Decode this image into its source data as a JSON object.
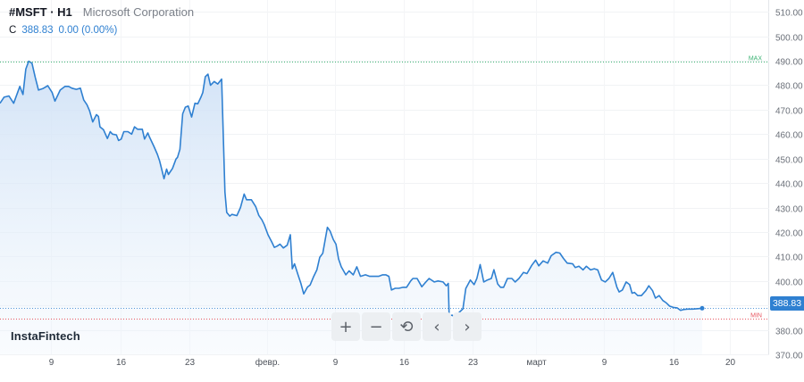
{
  "header": {
    "symbol": "#MSFT · H1",
    "company": "Microsoft Corporation",
    "close_label": "C",
    "close_value": "388.83",
    "change": "0.00 (0.00%)"
  },
  "watermark": "InstaFintech",
  "toolbar": {
    "zoom_in": "+",
    "zoom_out": "−",
    "reset": "⟲",
    "prev": "‹",
    "next": "›"
  },
  "colors": {
    "line": "#2f80d1",
    "max_line": "#3bb273",
    "min_line": "#e8555f"
  },
  "chart_data": {
    "type": "area",
    "ylim": [
      370,
      513
    ],
    "yticks": [
      "510.00",
      "500.00",
      "490.00",
      "480.00",
      "470.00",
      "460.00",
      "450.00",
      "440.00",
      "430.00",
      "420.00",
      "410.00",
      "400.00",
      "390.00",
      "380.00",
      "370.00"
    ],
    "xticks": [
      {
        "label": "9",
        "x": 0.0665
      },
      {
        "label": "16",
        "x": 0.1572
      },
      {
        "label": "23",
        "x": 0.2479
      },
      {
        "label": "февр.",
        "x": 0.3489
      },
      {
        "label": "9",
        "x": 0.4373
      },
      {
        "label": "16",
        "x": 0.528
      },
      {
        "label": "23",
        "x": 0.6176
      },
      {
        "label": "март",
        "x": 0.7004
      },
      {
        "label": "9",
        "x": 0.7888
      },
      {
        "label": "16",
        "x": 0.8795
      },
      {
        "label": "20",
        "x": 0.9535
      }
    ],
    "max": {
      "label": "MAX",
      "value": 489.8
    },
    "min": {
      "label": "MIN",
      "value": 384.7
    },
    "last": {
      "label": "388.83",
      "value": 388.83
    },
    "series": [
      {
        "values": [
          [
            0.0,
            472.6
          ],
          [
            0.0052,
            475.1
          ],
          [
            0.0117,
            475.6
          ],
          [
            0.0179,
            472.6
          ],
          [
            0.0259,
            479.5
          ],
          [
            0.03,
            476.2
          ],
          [
            0.0337,
            486.6
          ],
          [
            0.0375,
            489.8
          ],
          [
            0.0418,
            489.0
          ],
          [
            0.046,
            483.3
          ],
          [
            0.0503,
            478.0
          ],
          [
            0.0559,
            478.6
          ],
          [
            0.0624,
            479.8
          ],
          [
            0.0681,
            477.0
          ],
          [
            0.0718,
            473.5
          ],
          [
            0.0786,
            478.0
          ],
          [
            0.085,
            479.5
          ],
          [
            0.0896,
            479.5
          ],
          [
            0.0939,
            478.8
          ],
          [
            0.0996,
            478.3
          ],
          [
            0.105,
            478.8
          ],
          [
            0.1093,
            474.0
          ],
          [
            0.1136,
            472.0
          ],
          [
            0.117,
            469.5
          ],
          [
            0.1211,
            465.0
          ],
          [
            0.126,
            468.0
          ],
          [
            0.1286,
            467.2
          ],
          [
            0.1306,
            463.0
          ],
          [
            0.1352,
            461.8
          ],
          [
            0.1403,
            458.2
          ],
          [
            0.144,
            461.0
          ],
          [
            0.1469,
            460.0
          ],
          [
            0.152,
            459.7
          ],
          [
            0.1548,
            457.4
          ],
          [
            0.1583,
            458.0
          ],
          [
            0.1617,
            461.0
          ],
          [
            0.1671,
            461.0
          ],
          [
            0.172,
            460.0
          ],
          [
            0.1757,
            463.0
          ],
          [
            0.1796,
            462.0
          ],
          [
            0.1859,
            462.0
          ],
          [
            0.1888,
            458.0
          ],
          [
            0.1931,
            460.5
          ],
          [
            0.195,
            459.0
          ],
          [
            0.201,
            455.0
          ],
          [
            0.2056,
            451.7
          ],
          [
            0.2085,
            449.0
          ],
          [
            0.2102,
            447.0
          ],
          [
            0.2142,
            441.8
          ],
          [
            0.2176,
            445.7
          ],
          [
            0.2199,
            443.5
          ],
          [
            0.2253,
            446.0
          ],
          [
            0.2299,
            449.8
          ],
          [
            0.2318,
            450.5
          ],
          [
            0.235,
            453.8
          ],
          [
            0.2386,
            468.3
          ],
          [
            0.2421,
            471.0
          ],
          [
            0.2458,
            471.5
          ],
          [
            0.2503,
            467.0
          ],
          [
            0.2546,
            472.6
          ],
          [
            0.2583,
            472.4
          ],
          [
            0.2624,
            475.1
          ],
          [
            0.2649,
            477.0
          ],
          [
            0.2681,
            483.5
          ],
          [
            0.2717,
            484.5
          ],
          [
            0.2749,
            480.0
          ],
          [
            0.2798,
            481.5
          ],
          [
            0.2844,
            480.5
          ],
          [
            0.2895,
            482.5
          ],
          [
            0.2938,
            436.3
          ],
          [
            0.2961,
            428.0
          ],
          [
            0.3001,
            426.5
          ],
          [
            0.3029,
            427.2
          ],
          [
            0.3095,
            426.7
          ],
          [
            0.3141,
            430.0
          ],
          [
            0.3189,
            435.5
          ],
          [
            0.3221,
            433.2
          ],
          [
            0.3283,
            433.2
          ],
          [
            0.334,
            430.4
          ],
          [
            0.338,
            426.8
          ],
          [
            0.342,
            425.0
          ],
          [
            0.3452,
            423.0
          ],
          [
            0.3501,
            418.9
          ],
          [
            0.3549,
            416.0
          ],
          [
            0.3584,
            413.7
          ],
          [
            0.3618,
            414.2
          ],
          [
            0.3658,
            415.0
          ],
          [
            0.3701,
            413.5
          ],
          [
            0.3752,
            414.6
          ],
          [
            0.3792,
            418.9
          ],
          [
            0.3818,
            405.0
          ],
          [
            0.3847,
            407.0
          ],
          [
            0.3893,
            402.5
          ],
          [
            0.393,
            399.0
          ],
          [
            0.3967,
            394.7
          ],
          [
            0.4016,
            397.5
          ],
          [
            0.405,
            398.3
          ],
          [
            0.4098,
            401.9
          ],
          [
            0.4139,
            404.5
          ],
          [
            0.4176,
            409.6
          ],
          [
            0.4216,
            411.3
          ],
          [
            0.4276,
            421.9
          ],
          [
            0.4313,
            420.3
          ],
          [
            0.4354,
            416.9
          ],
          [
            0.4388,
            415.0
          ],
          [
            0.4422,
            409.0
          ],
          [
            0.4457,
            405.8
          ],
          [
            0.4517,
            402.5
          ],
          [
            0.456,
            404.1
          ],
          [
            0.4614,
            402.5
          ],
          [
            0.466,
            405.8
          ],
          [
            0.4708,
            401.9
          ],
          [
            0.4774,
            402.5
          ],
          [
            0.4828,
            401.9
          ],
          [
            0.4885,
            401.9
          ],
          [
            0.4945,
            401.9
          ],
          [
            0.4999,
            402.5
          ],
          [
            0.5039,
            402.5
          ],
          [
            0.5079,
            401.9
          ],
          [
            0.5113,
            396.3
          ],
          [
            0.5162,
            397.0
          ],
          [
            0.521,
            397.0
          ],
          [
            0.5265,
            397.4
          ],
          [
            0.531,
            397.4
          ],
          [
            0.5364,
            400.0
          ],
          [
            0.5393,
            401.0
          ],
          [
            0.5448,
            401.0
          ],
          [
            0.551,
            397.6
          ],
          [
            0.555,
            399.1
          ],
          [
            0.5604,
            401.0
          ],
          [
            0.5673,
            399.6
          ],
          [
            0.5721,
            400.0
          ],
          [
            0.5787,
            399.6
          ],
          [
            0.583,
            398.0
          ],
          [
            0.5855,
            399.0
          ],
          [
            0.5867,
            385.7
          ],
          [
            0.5904,
            386.0
          ],
          [
            0.5941,
            385.3
          ],
          [
            0.6004,
            387.3
          ],
          [
            0.6047,
            388.6
          ],
          [
            0.6084,
            396.9
          ],
          [
            0.6144,
            400.4
          ],
          [
            0.6192,
            398.5
          ],
          [
            0.6229,
            401.0
          ],
          [
            0.6272,
            406.7
          ],
          [
            0.6318,
            399.6
          ],
          [
            0.6366,
            400.4
          ],
          [
            0.6418,
            401.0
          ],
          [
            0.6452,
            404.6
          ],
          [
            0.6501,
            398.8
          ],
          [
            0.6538,
            397.4
          ],
          [
            0.6578,
            397.4
          ],
          [
            0.6629,
            401.0
          ],
          [
            0.6686,
            401.0
          ],
          [
            0.6729,
            399.6
          ],
          [
            0.6778,
            401.0
          ],
          [
            0.6838,
            403.5
          ],
          [
            0.6883,
            403.0
          ],
          [
            0.6946,
            406.4
          ],
          [
            0.6997,
            408.5
          ],
          [
            0.7037,
            406.2
          ],
          [
            0.7094,
            408.2
          ],
          [
            0.7154,
            407.3
          ],
          [
            0.72,
            410.3
          ],
          [
            0.7262,
            411.7
          ],
          [
            0.7311,
            411.4
          ],
          [
            0.7359,
            409.2
          ],
          [
            0.7408,
            407.3
          ],
          [
            0.7479,
            407.0
          ],
          [
            0.7513,
            405.5
          ],
          [
            0.7562,
            406.0
          ],
          [
            0.7616,
            404.5
          ],
          [
            0.7659,
            406.0
          ],
          [
            0.7714,
            404.5
          ],
          [
            0.7762,
            405.0
          ],
          [
            0.7808,
            404.5
          ],
          [
            0.7856,
            400.4
          ],
          [
            0.7905,
            399.6
          ],
          [
            0.7953,
            401.0
          ],
          [
            0.8004,
            403.5
          ],
          [
            0.8058,
            397.4
          ],
          [
            0.8087,
            395.5
          ],
          [
            0.813,
            396.3
          ],
          [
            0.8178,
            399.6
          ],
          [
            0.8224,
            398.5
          ],
          [
            0.8255,
            395.0
          ],
          [
            0.8287,
            395.3
          ],
          [
            0.833,
            394.0
          ],
          [
            0.8378,
            394.0
          ],
          [
            0.8435,
            396.0
          ],
          [
            0.8475,
            398.0
          ],
          [
            0.8524,
            396.0
          ],
          [
            0.8561,
            393.0
          ],
          [
            0.861,
            394.0
          ],
          [
            0.8658,
            392.0
          ],
          [
            0.8704,
            391.0
          ],
          [
            0.8747,
            389.7
          ],
          [
            0.8795,
            389.2
          ],
          [
            0.8844,
            389.0
          ],
          [
            0.8889,
            388.0
          ],
          [
            0.8929,
            388.3
          ],
          [
            0.8981,
            388.5
          ],
          [
            0.9046,
            388.5
          ],
          [
            0.9172,
            388.83
          ]
        ]
      }
    ]
  }
}
